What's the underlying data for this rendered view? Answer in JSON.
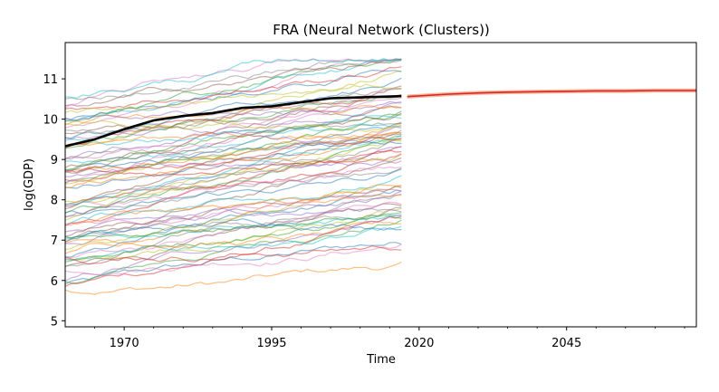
{
  "chart_data": {
    "type": "line",
    "title": "FRA (Neural Network (Clusters))",
    "xlabel": "Time",
    "ylabel": "log(GDP)",
    "xlim": [
      1960,
      2067
    ],
    "ylim": [
      4.85,
      11.9
    ],
    "xticks": [
      1970,
      1995,
      2020,
      2045
    ],
    "yticks": [
      5,
      6,
      7,
      8,
      9,
      10,
      11
    ],
    "grid": false,
    "legend": "none",
    "history_range": [
      1960,
      2017
    ],
    "forecast_range": [
      2018,
      2067
    ],
    "background_series_count": 80,
    "background_series_value_range": [
      5.3,
      11.5
    ],
    "focus_series": {
      "color": "#000000",
      "points": [
        [
          1960,
          9.33
        ],
        [
          1965,
          9.5
        ],
        [
          1970,
          9.75
        ],
        [
          1975,
          9.97
        ],
        [
          1980,
          10.08
        ],
        [
          1985,
          10.15
        ],
        [
          1990,
          10.28
        ],
        [
          1995,
          10.32
        ],
        [
          2000,
          10.42
        ],
        [
          2005,
          10.52
        ],
        [
          2010,
          10.54
        ],
        [
          2017,
          10.57
        ]
      ]
    },
    "forecast_series": {
      "color": "#d62728",
      "band_color": "#f4a582",
      "points": [
        [
          2018,
          10.56
        ],
        [
          2025,
          10.62
        ],
        [
          2030,
          10.65
        ],
        [
          2035,
          10.67
        ],
        [
          2040,
          10.68
        ],
        [
          2045,
          10.69
        ],
        [
          2050,
          10.7
        ],
        [
          2055,
          10.7
        ],
        [
          2060,
          10.71
        ],
        [
          2067,
          10.71
        ]
      ]
    },
    "palette": [
      "#1f77b4",
      "#ff7f0e",
      "#2ca02c",
      "#d62728",
      "#9467bd",
      "#8c564b",
      "#e377c2",
      "#7f7f7f",
      "#bcbd22",
      "#17becf"
    ]
  }
}
